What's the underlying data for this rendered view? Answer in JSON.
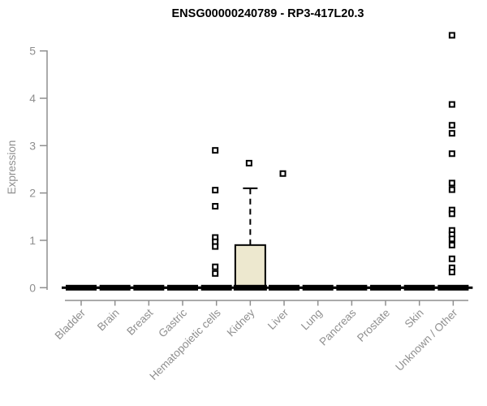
{
  "chart_data": {
    "type": "boxplot",
    "title": "ENSG00000240789 - RP3-417L20.3",
    "ylabel": "Expression",
    "xlabel": "",
    "ylim": [
      0,
      5.4
    ],
    "yticks": [
      0,
      1,
      2,
      3,
      4,
      5
    ],
    "grid": false,
    "legend": "none",
    "x_label_rotation_deg": 45,
    "categories": [
      "Bladder",
      "Brain",
      "Breast",
      "Gastric",
      "Hematopoietic cells",
      "Kidney",
      "Liver",
      "Lung",
      "Pancreas",
      "Prostate",
      "Skin",
      "Unknown / Other"
    ],
    "boxes": [
      {
        "category": "Bladder",
        "min": 0,
        "q1": 0,
        "median": 0,
        "q3": 0,
        "max": 0,
        "outliers": []
      },
      {
        "category": "Brain",
        "min": 0,
        "q1": 0,
        "median": 0,
        "q3": 0,
        "max": 0,
        "outliers": []
      },
      {
        "category": "Breast",
        "min": 0,
        "q1": 0,
        "median": 0,
        "q3": 0,
        "max": 0,
        "outliers": []
      },
      {
        "category": "Gastric",
        "min": 0,
        "q1": 0,
        "median": 0,
        "q3": 0,
        "max": 0,
        "outliers": []
      },
      {
        "category": "Hematopoietic cells",
        "min": 0,
        "q1": 0,
        "median": 0,
        "q3": 0,
        "max": 0,
        "outliers": [
          2.9,
          2.06,
          1.72,
          1.06,
          0.97,
          0.87,
          0.44,
          0.3
        ]
      },
      {
        "category": "Kidney",
        "min": 0,
        "q1": 0,
        "median": 0,
        "q3": 0.9,
        "max": 2.1,
        "outliers": [
          2.63
        ]
      },
      {
        "category": "Liver",
        "min": 0,
        "q1": 0,
        "median": 0,
        "q3": 0,
        "max": 0,
        "outliers": [
          2.41
        ]
      },
      {
        "category": "Lung",
        "min": 0,
        "q1": 0,
        "median": 0,
        "q3": 0,
        "max": 0,
        "outliers": []
      },
      {
        "category": "Pancreas",
        "min": 0,
        "q1": 0,
        "median": 0,
        "q3": 0,
        "max": 0,
        "outliers": []
      },
      {
        "category": "Prostate",
        "min": 0,
        "q1": 0,
        "median": 0,
        "q3": 0,
        "max": 0,
        "outliers": []
      },
      {
        "category": "Skin",
        "min": 0,
        "q1": 0,
        "median": 0,
        "q3": 0,
        "max": 0,
        "outliers": []
      },
      {
        "category": "Unknown / Other",
        "min": 0,
        "q1": 0,
        "median": 0,
        "q3": 0,
        "max": 0,
        "outliers": [
          5.33,
          3.87,
          3.43,
          3.26,
          2.83,
          2.21,
          2.07,
          1.64,
          1.56,
          1.21,
          1.12,
          1.03,
          0.9,
          0.61,
          0.42,
          0.33
        ]
      }
    ],
    "colors": {
      "box_fill": "#ede8cf",
      "box_border": "#000000",
      "flat_bar": "#000000",
      "outlier_stroke": "#000000",
      "outlier_fill": "#ffffff",
      "axis": "#8f8f8f",
      "title": "#000000"
    }
  }
}
